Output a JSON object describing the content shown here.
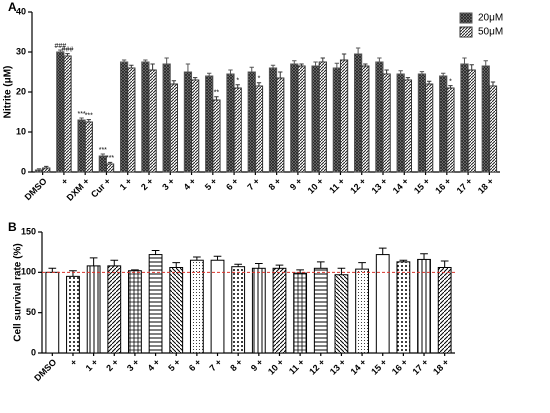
{
  "chart_data": [
    {
      "type": "bar",
      "panel_label": "A",
      "ylabel": "Nitrite (μM)",
      "categories": [
        "DMSO",
        "+",
        "DXM +",
        "Cur +",
        "1 +",
        "2 +",
        "3 +",
        "4 +",
        "5 +",
        "6 +",
        "7 +",
        "8 +",
        "9 +",
        "10 +",
        "11 +",
        "12 +",
        "13 +",
        "14 +",
        "15 +",
        "16 +",
        "17 +",
        "18 +"
      ],
      "series": [
        {
          "name": "20μM",
          "color": "#555555",
          "pattern": "cross",
          "values": [
            0.5,
            30,
            13,
            4,
            27.5,
            27.5,
            27,
            25,
            24,
            24.5,
            25,
            26,
            27,
            26.5,
            26,
            29.5,
            27.5,
            24.5,
            24.5,
            24,
            27,
            26.5
          ],
          "errors": [
            0.3,
            0.5,
            0.5,
            0.5,
            0.5,
            0.5,
            1.5,
            2,
            0.7,
            1,
            1.2,
            0.7,
            0.8,
            1,
            1.2,
            1.5,
            1,
            0.8,
            0.6,
            0.7,
            1.5,
            1.3
          ]
        },
        {
          "name": "50μM",
          "color": "#333333",
          "pattern": "diag",
          "values": [
            1,
            29,
            12.5,
            2,
            26,
            25.5,
            22,
            23,
            18,
            21,
            21.5,
            23.5,
            26.5,
            27.5,
            28,
            26.5,
            24.5,
            23,
            22,
            21,
            25.5,
            21.5
          ],
          "errors": [
            0.4,
            0.6,
            0.6,
            0.4,
            0.7,
            1.5,
            0.8,
            0.6,
            0.8,
            0.8,
            0.8,
            1.5,
            0.5,
            1,
            1.5,
            0.5,
            1,
            0.6,
            0.7,
            0.6,
            1.3,
            1
          ]
        }
      ],
      "annotations": [
        {
          "text": "###",
          "index": 1,
          "series": 0
        },
        {
          "text": "###",
          "index": 1,
          "series": 1
        },
        {
          "text": "***",
          "index": 2,
          "series": 0
        },
        {
          "text": "***",
          "index": 2,
          "series": 1
        },
        {
          "text": "***",
          "index": 3,
          "series": 0
        },
        {
          "text": "***",
          "index": 3,
          "series": 1
        },
        {
          "text": "**",
          "index": 8,
          "series": 1
        },
        {
          "text": "*",
          "index": 9,
          "series": 1
        },
        {
          "text": "*",
          "index": 10,
          "series": 1
        },
        {
          "text": "*",
          "index": 19,
          "series": 1
        }
      ],
      "ylim": [
        0,
        40
      ],
      "yticks": [
        0,
        10,
        20,
        30,
        40
      ],
      "legend": "upper right"
    },
    {
      "type": "bar",
      "panel_label": "B",
      "ylabel": "Cell survival rate (%)",
      "categories": [
        "DMSO",
        "+",
        "1 +",
        "2 +",
        "3 +",
        "4 +",
        "5 +",
        "6 +",
        "7 +",
        "8 +",
        "9 +",
        "10 +",
        "11 +",
        "12 +",
        "13 +",
        "14 +",
        "15 +",
        "16 +",
        "17 +",
        "18 +"
      ],
      "values": [
        100,
        95,
        108,
        108,
        102,
        122,
        106,
        115,
        115,
        107,
        105,
        105,
        99,
        105,
        97,
        104,
        122,
        113,
        116,
        106
      ],
      "errors": [
        5,
        7,
        10,
        7,
        1,
        5,
        6,
        4,
        5,
        3,
        6,
        4,
        4,
        8,
        8,
        8,
        8,
        2,
        7,
        8
      ],
      "color": "#000000",
      "refline": 100,
      "refline_color": "#d9342b",
      "ylim": [
        0,
        150
      ],
      "yticks": [
        0,
        50,
        100,
        150
      ]
    }
  ]
}
